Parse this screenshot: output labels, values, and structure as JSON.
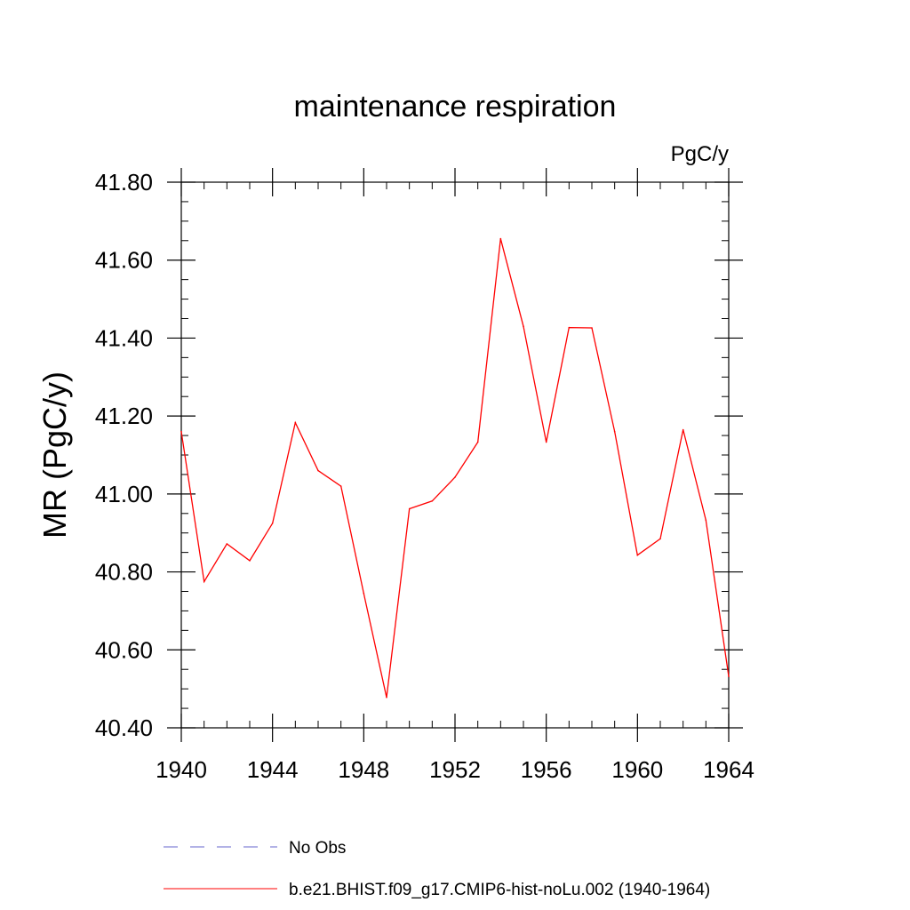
{
  "chart_data": {
    "type": "line",
    "title": "maintenance respiration",
    "units": "PgC/y",
    "ylabel": "MR  (PgC/y)",
    "xlabel": "",
    "xlim": [
      1940,
      1964
    ],
    "ylim": [
      40.4,
      41.8
    ],
    "x_ticks": [
      1940,
      1944,
      1948,
      1952,
      1956,
      1960,
      1964
    ],
    "x_tick_labels": [
      "1940",
      "1944",
      "1948",
      "1952",
      "1956",
      "1960",
      "1964"
    ],
    "y_ticks": [
      40.4,
      40.6,
      40.8,
      41.0,
      41.2,
      41.4,
      41.6,
      41.8
    ],
    "y_tick_labels": [
      "40.40",
      "40.60",
      "40.80",
      "41.00",
      "41.20",
      "41.40",
      "41.60",
      "41.80"
    ],
    "grid": false,
    "legend_position": "bottom",
    "series": [
      {
        "name": "b.e21.BHIST.f09_g17.CMIP6-hist-noLu.002 (1940-1964)",
        "color": "#ff0000",
        "style": "solid",
        "x": [
          1940,
          1941,
          1942,
          1943,
          1944,
          1945,
          1946,
          1947,
          1948,
          1949,
          1950,
          1951,
          1952,
          1953,
          1954,
          1955,
          1956,
          1957,
          1958,
          1959,
          1960,
          1961,
          1962,
          1963,
          1964
        ],
        "values": [
          41.16,
          40.775,
          40.872,
          40.829,
          40.925,
          41.183,
          41.06,
          41.02,
          40.745,
          40.478,
          40.962,
          40.982,
          41.043,
          41.133,
          41.655,
          41.43,
          41.133,
          41.427,
          41.426,
          41.16,
          40.843,
          40.885,
          41.165,
          40.933,
          40.532
        ]
      }
    ],
    "legend": [
      {
        "label": "No Obs",
        "color": "#6666cc",
        "style": "dashed"
      },
      {
        "label": "b.e21.BHIST.f09_g17.CMIP6-hist-noLu.002 (1940-1964)",
        "color": "#ff0000",
        "style": "solid"
      }
    ]
  }
}
